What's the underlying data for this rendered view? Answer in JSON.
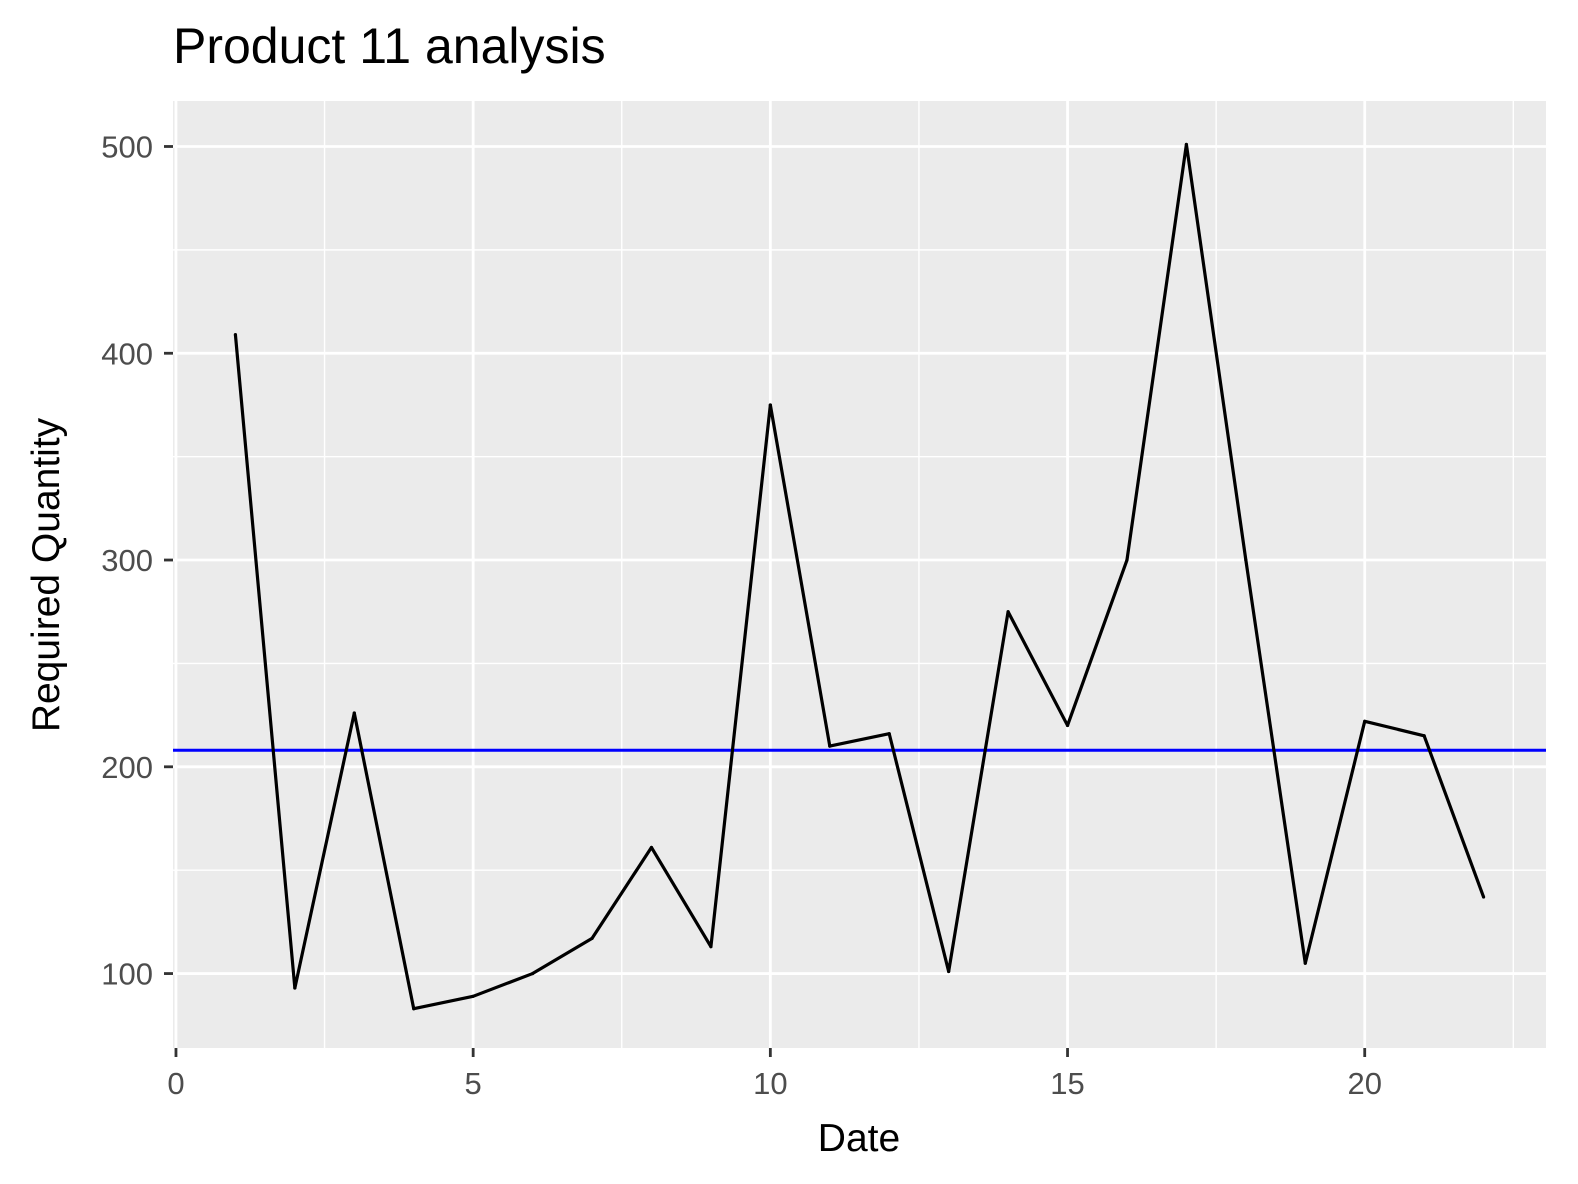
{
  "chart_data": {
    "type": "line",
    "title": "Product 11 analysis",
    "xlabel": "Date",
    "ylabel": "Required Quantity",
    "xlim": [
      -0.05,
      23.05
    ],
    "ylim": [
      64,
      522
    ],
    "x_ticks": [
      0,
      5,
      10,
      15,
      20
    ],
    "x_minor_ticks": [
      2.5,
      7.5,
      12.5,
      17.5,
      22.5
    ],
    "y_ticks": [
      100,
      200,
      300,
      400,
      500
    ],
    "y_minor_ticks": [
      150,
      250,
      350,
      450
    ],
    "grid": true,
    "legend": "none",
    "colors": {
      "panel": "#ebebeb",
      "grid": "#ffffff",
      "line": "#000000",
      "reference": "#0000ff",
      "tick": "#333333"
    },
    "series": [
      {
        "x": [
          1,
          2,
          3,
          4,
          5,
          6,
          7,
          8,
          9,
          10,
          11,
          12,
          13,
          14,
          15,
          16,
          17,
          18,
          19,
          20,
          21,
          22
        ],
        "values": [
          409,
          93,
          226,
          83,
          89,
          100,
          117,
          161,
          113,
          375,
          210,
          216,
          101,
          275,
          220,
          300,
          501,
          300,
          105,
          222,
          215,
          137
        ]
      }
    ],
    "reference_line": {
      "orientation": "horizontal",
      "y": 208
    }
  }
}
